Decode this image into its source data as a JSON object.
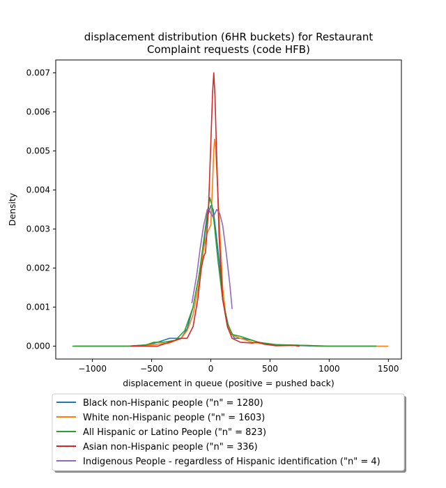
{
  "chart_data": {
    "type": "line",
    "title": "displacement distribution (6HR buckets) for Restaurant\nComplaint requests (code HFB)",
    "xlabel": "displacement in queue (positive = pushed back)",
    "ylabel": "Density",
    "xlim": [
      -1310,
      1610
    ],
    "ylim": [
      -0.00033,
      0.00733
    ],
    "xticks": [
      -1000,
      -500,
      0,
      500,
      1000,
      1500
    ],
    "xtick_labels": [
      "−1000",
      "−500",
      "0",
      "500",
      "1000",
      "1500"
    ],
    "yticks": [
      0.0,
      0.001,
      0.002,
      0.003,
      0.004,
      0.005,
      0.006,
      0.007
    ],
    "ytick_labels": [
      "0.000",
      "0.001",
      "0.002",
      "0.003",
      "0.004",
      "0.005",
      "0.006",
      "0.007"
    ],
    "grid": false,
    "legend_position": "below-plot",
    "series": [
      {
        "name": "Black non-Hispanic people (\"n\" = 1280)",
        "color": "#1f77b4",
        "points": [
          [
            -1150,
            0
          ],
          [
            -700,
            0
          ],
          [
            -550,
            3e-05
          ],
          [
            -450,
            0.0001
          ],
          [
            -400,
            0.00015
          ],
          [
            -350,
            0.0002
          ],
          [
            -300,
            0.0002
          ],
          [
            -250,
            0.0002
          ],
          [
            -200,
            0.00045
          ],
          [
            -150,
            0.001
          ],
          [
            -100,
            0.0018
          ],
          [
            -60,
            0.0026
          ],
          [
            -30,
            0.0033
          ],
          [
            0,
            0.0036
          ],
          [
            20,
            0.0035
          ],
          [
            40,
            0.003
          ],
          [
            70,
            0.0022
          ],
          [
            100,
            0.0012
          ],
          [
            150,
            0.0005
          ],
          [
            200,
            0.0002
          ],
          [
            250,
            0.0002
          ],
          [
            300,
            0.00018
          ],
          [
            350,
            0.00015
          ],
          [
            400,
            0.0001
          ],
          [
            500,
            4e-05
          ],
          [
            700,
            2e-05
          ],
          [
            900,
            0
          ],
          [
            1400,
            0
          ]
        ]
      },
      {
        "name": "White non-Hispanic people (\"n\" = 1603)",
        "color": "#ff7f0e",
        "points": [
          [
            -1150,
            0
          ],
          [
            -700,
            0
          ],
          [
            -550,
            2e-05
          ],
          [
            -450,
            5e-05
          ],
          [
            -350,
            8e-05
          ],
          [
            -250,
            0.0002
          ],
          [
            -200,
            0.0004
          ],
          [
            -150,
            0.0008
          ],
          [
            -100,
            0.0016
          ],
          [
            -60,
            0.0025
          ],
          [
            -30,
            0.0029
          ],
          [
            0,
            0.0031
          ],
          [
            15,
            0.0042
          ],
          [
            25,
            0.005
          ],
          [
            32,
            0.0053
          ],
          [
            40,
            0.0051
          ],
          [
            55,
            0.0042
          ],
          [
            75,
            0.003
          ],
          [
            100,
            0.0015
          ],
          [
            130,
            0.0007
          ],
          [
            170,
            0.0003
          ],
          [
            250,
            0.0002
          ],
          [
            350,
            0.0001
          ],
          [
            450,
            6e-05
          ],
          [
            600,
            3e-05
          ],
          [
            800,
            2e-05
          ],
          [
            1000,
            0
          ],
          [
            1500,
            0
          ]
        ]
      },
      {
        "name": "All Hispanic or Latino People (\"n\" = 823)",
        "color": "#2ca02c",
        "points": [
          [
            -1170,
            0
          ],
          [
            -700,
            0
          ],
          [
            -550,
            3e-05
          ],
          [
            -480,
            0.0001
          ],
          [
            -400,
            0.0001
          ],
          [
            -300,
            0.00015
          ],
          [
            -220,
            0.0004
          ],
          [
            -150,
            0.001
          ],
          [
            -100,
            0.0018
          ],
          [
            -60,
            0.0027
          ],
          [
            -30,
            0.0034
          ],
          [
            -8,
            0.0038
          ],
          [
            10,
            0.0036
          ],
          [
            30,
            0.0031
          ],
          [
            60,
            0.0022
          ],
          [
            100,
            0.0012
          ],
          [
            140,
            0.0006
          ],
          [
            180,
            0.0003
          ],
          [
            250,
            0.00025
          ],
          [
            320,
            0.00018
          ],
          [
            400,
            0.0001
          ],
          [
            550,
            4e-05
          ],
          [
            800,
            2e-05
          ],
          [
            1000,
            0
          ],
          [
            1400,
            0
          ]
        ]
      },
      {
        "name": "Asian non-Hispanic people (\"n\" = 336)",
        "color": "#d62728",
        "points": [
          [
            -680,
            0
          ],
          [
            -450,
            0
          ],
          [
            -350,
            0.0001
          ],
          [
            -250,
            0.0002
          ],
          [
            -200,
            0.0002
          ],
          [
            -150,
            0.0005
          ],
          [
            -110,
            0.0012
          ],
          [
            -80,
            0.002
          ],
          [
            -60,
            0.0023
          ],
          [
            -45,
            0.0024
          ],
          [
            -20,
            0.0035
          ],
          [
            0,
            0.0052
          ],
          [
            15,
            0.0065
          ],
          [
            25,
            0.007
          ],
          [
            35,
            0.0064
          ],
          [
            50,
            0.0048
          ],
          [
            70,
            0.0028
          ],
          [
            100,
            0.0012
          ],
          [
            140,
            0.0005
          ],
          [
            180,
            0.0002
          ],
          [
            250,
            0.0001
          ],
          [
            350,
            8e-05
          ],
          [
            400,
            0.0001
          ],
          [
            450,
            5e-05
          ],
          [
            550,
            1e-05
          ],
          [
            700,
            2e-05
          ],
          [
            750,
            0
          ]
        ]
      },
      {
        "name": "Indigenous People - regardless of Hispanic identification (\"n\" = 4)",
        "color": "#9467bd",
        "points": [
          [
            -160,
            0.0011
          ],
          [
            -120,
            0.0018
          ],
          [
            -90,
            0.0025
          ],
          [
            -60,
            0.0031
          ],
          [
            -30,
            0.0035
          ],
          [
            -15,
            0.0035
          ],
          [
            0,
            0.0034
          ],
          [
            20,
            0.0033
          ],
          [
            35,
            0.0034
          ],
          [
            50,
            0.0035
          ],
          [
            75,
            0.0034
          ],
          [
            100,
            0.0031
          ],
          [
            130,
            0.0024
          ],
          [
            160,
            0.0016
          ],
          [
            180,
            0.00095
          ]
        ]
      }
    ]
  }
}
